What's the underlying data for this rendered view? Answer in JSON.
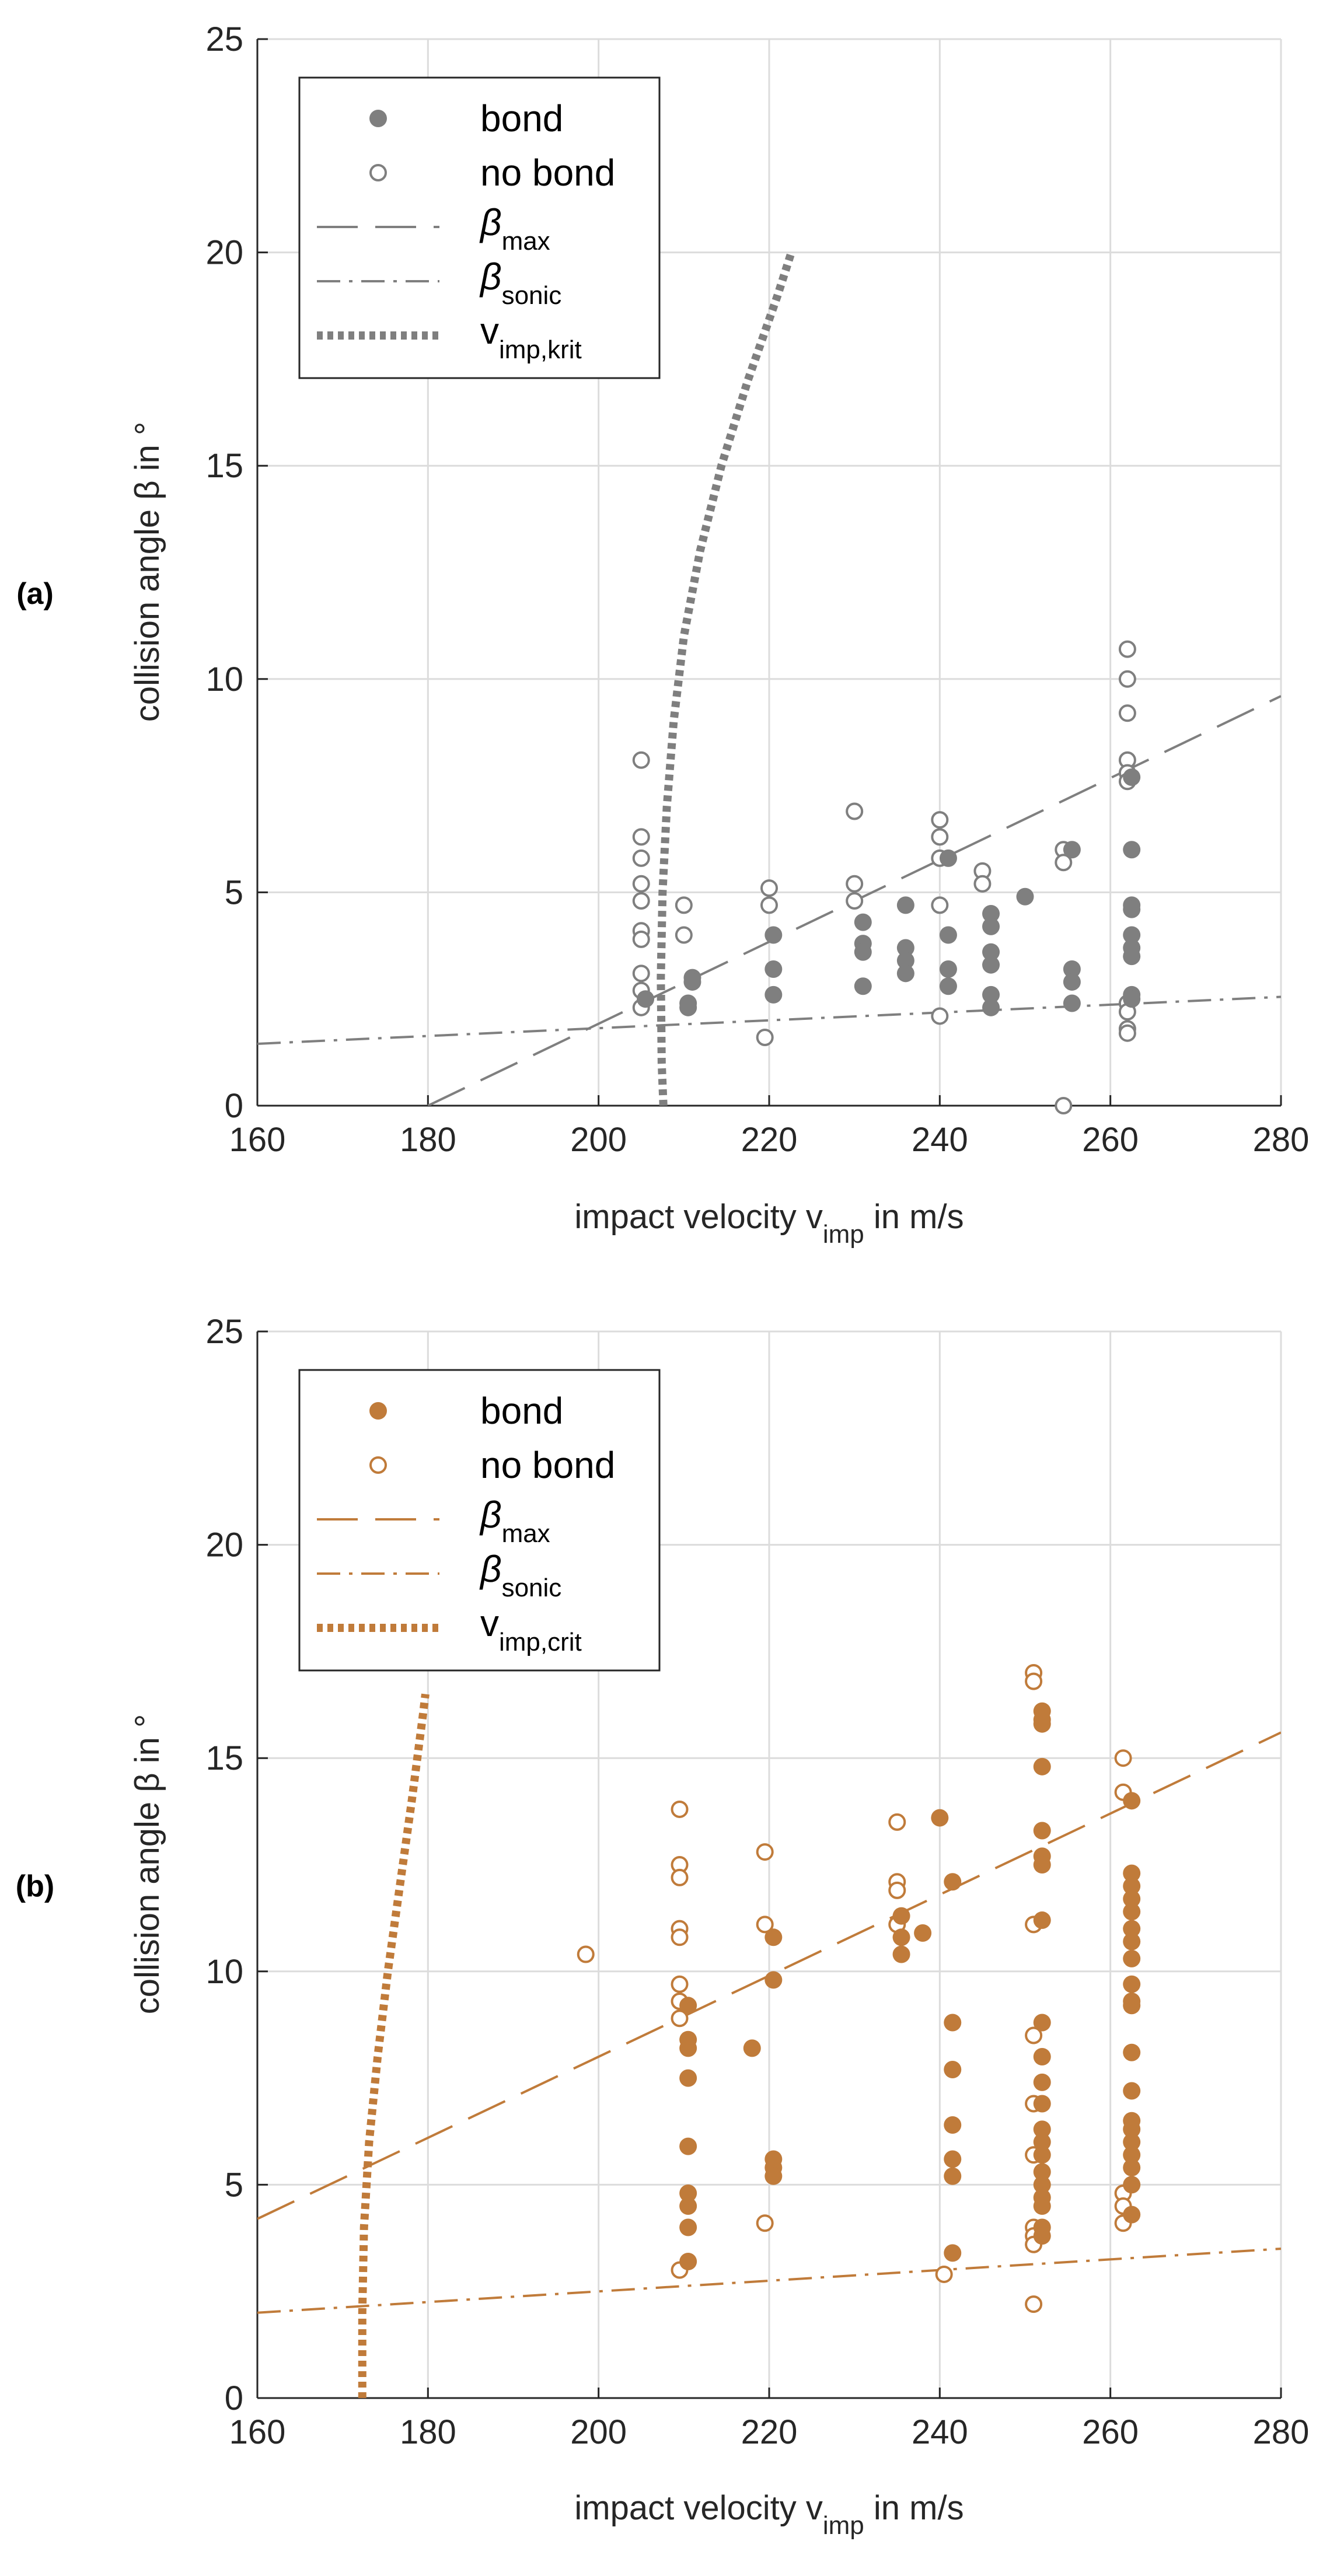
{
  "chart_data": [
    {
      "type": "scatter",
      "panel_label": "(a)",
      "color": "#7f7f7f",
      "xlabel": "impact velocity v",
      "xlabel_sub": "imp",
      "xlabel_tail": " in m/s",
      "ylabel": "collision angle β in °",
      "xlim": [
        160,
        280
      ],
      "ylim": [
        0,
        25
      ],
      "xticks": [
        160,
        180,
        200,
        220,
        240,
        260,
        280
      ],
      "yticks": [
        0,
        5,
        10,
        15,
        20,
        25
      ],
      "grid": true,
      "legend": {
        "placement": "top-left",
        "bond": "bond",
        "nobond": "no bond",
        "beta_max_sym": "β",
        "beta_max_sub": "max",
        "beta_sonic_sym": "β",
        "beta_sonic_sub": "sonic",
        "vcrit_sym": "v",
        "vcrit_sub": "imp,krit"
      },
      "bond": [
        [
          205.5,
          2.5
        ],
        [
          210.5,
          2.4
        ],
        [
          211,
          3.0
        ],
        [
          211,
          2.9
        ],
        [
          210.5,
          2.3
        ],
        [
          220.5,
          4.0
        ],
        [
          220.5,
          3.2
        ],
        [
          220.5,
          2.6
        ],
        [
          231,
          4.3
        ],
        [
          231,
          3.8
        ],
        [
          231,
          3.6
        ],
        [
          231,
          2.8
        ],
        [
          236,
          4.7
        ],
        [
          236,
          3.7
        ],
        [
          236,
          3.4
        ],
        [
          236,
          3.1
        ],
        [
          241,
          5.8
        ],
        [
          241,
          4.0
        ],
        [
          241,
          3.2
        ],
        [
          241,
          2.8
        ],
        [
          246,
          4.5
        ],
        [
          246,
          4.2
        ],
        [
          246,
          3.6
        ],
        [
          246,
          3.3
        ],
        [
          246,
          2.6
        ],
        [
          246,
          2.3
        ],
        [
          250,
          4.9
        ],
        [
          255.5,
          6.0
        ],
        [
          255.5,
          3.2
        ],
        [
          255.5,
          2.9
        ],
        [
          255.5,
          2.4
        ],
        [
          262.5,
          7.7
        ],
        [
          262.5,
          6.0
        ],
        [
          262.5,
          4.7
        ],
        [
          262.5,
          4.6
        ],
        [
          262.5,
          4.0
        ],
        [
          262.5,
          3.7
        ],
        [
          262.5,
          3.5
        ],
        [
          262.5,
          2.6
        ],
        [
          262.5,
          2.5
        ]
      ],
      "nobond": [
        [
          205,
          8.1
        ],
        [
          205,
          6.3
        ],
        [
          205,
          5.8
        ],
        [
          205,
          5.2
        ],
        [
          205,
          4.8
        ],
        [
          205,
          4.1
        ],
        [
          205,
          3.9
        ],
        [
          205,
          3.1
        ],
        [
          205,
          2.7
        ],
        [
          205,
          2.3
        ],
        [
          210,
          4.7
        ],
        [
          210,
          4.0
        ],
        [
          220,
          5.1
        ],
        [
          220,
          4.7
        ],
        [
          219.5,
          1.6
        ],
        [
          230,
          6.9
        ],
        [
          230,
          5.2
        ],
        [
          230,
          4.8
        ],
        [
          240,
          6.7
        ],
        [
          240,
          6.3
        ],
        [
          240,
          5.8
        ],
        [
          240,
          4.7
        ],
        [
          240,
          2.1
        ],
        [
          245,
          5.5
        ],
        [
          245,
          5.2
        ],
        [
          254.5,
          6.0
        ],
        [
          254.5,
          5.7
        ],
        [
          254.5,
          0.0
        ],
        [
          262,
          10.7
        ],
        [
          262,
          10.0
        ],
        [
          262,
          9.2
        ],
        [
          262,
          8.1
        ],
        [
          262,
          7.8
        ],
        [
          262,
          7.6
        ],
        [
          262,
          2.4
        ],
        [
          262,
          2.2
        ],
        [
          262,
          1.8
        ],
        [
          262,
          1.7
        ]
      ],
      "beta_max_line": [
        [
          180,
          0
        ],
        [
          280,
          9.6
        ]
      ],
      "beta_sonic_line": [
        [
          160,
          1.45
        ],
        [
          280,
          2.55
        ]
      ],
      "v_crit_curve": [
        [
          207.6,
          0
        ],
        [
          207.4,
          1
        ],
        [
          207.3,
          3
        ],
        [
          207.5,
          5
        ],
        [
          208,
          7
        ],
        [
          208.8,
          9
        ],
        [
          210,
          11
        ],
        [
          211.9,
          13
        ],
        [
          214.4,
          15
        ],
        [
          217.5,
          17
        ],
        [
          221,
          19
        ],
        [
          222.6,
          20
        ]
      ]
    },
    {
      "type": "scatter",
      "panel_label": "(b)",
      "color": "#c07b3a",
      "xlabel": "impact velocity v",
      "xlabel_sub": "imp",
      "xlabel_tail": " in m/s",
      "ylabel": "collision angle β in °",
      "xlim": [
        160,
        280
      ],
      "ylim": [
        0,
        25
      ],
      "xticks": [
        160,
        180,
        200,
        220,
        240,
        260,
        280
      ],
      "yticks": [
        0,
        5,
        10,
        15,
        20,
        25
      ],
      "grid": true,
      "legend": {
        "placement": "top-left",
        "bond": "bond",
        "nobond": "no bond",
        "beta_max_sym": "β",
        "beta_max_sub": "max",
        "beta_sonic_sym": "β",
        "beta_sonic_sub": "sonic",
        "vcrit_sym": "v",
        "vcrit_sub": "imp,crit"
      },
      "bond": [
        [
          210.5,
          9.2
        ],
        [
          210.5,
          8.4
        ],
        [
          210.5,
          8.2
        ],
        [
          210.5,
          7.5
        ],
        [
          210.5,
          5.9
        ],
        [
          210.5,
          4.8
        ],
        [
          210.5,
          4.5
        ],
        [
          210.5,
          4.0
        ],
        [
          210.5,
          3.2
        ],
        [
          218,
          8.2
        ],
        [
          220.5,
          10.8
        ],
        [
          220.5,
          9.8
        ],
        [
          220.5,
          5.6
        ],
        [
          220.5,
          5.4
        ],
        [
          220.5,
          5.2
        ],
        [
          235.5,
          11.3
        ],
        [
          235.5,
          10.8
        ],
        [
          235.5,
          10.4
        ],
        [
          238,
          10.9
        ],
        [
          240,
          13.6
        ],
        [
          241.5,
          12.1
        ],
        [
          241.5,
          8.8
        ],
        [
          241.5,
          7.7
        ],
        [
          241.5,
          6.4
        ],
        [
          241.5,
          5.6
        ],
        [
          241.5,
          5.2
        ],
        [
          241.5,
          3.4
        ],
        [
          252,
          16.1
        ],
        [
          252,
          15.9
        ],
        [
          252,
          15.8
        ],
        [
          252,
          14.8
        ],
        [
          252,
          13.3
        ],
        [
          252,
          12.7
        ],
        [
          252,
          12.5
        ],
        [
          252,
          11.2
        ],
        [
          252,
          8.8
        ],
        [
          252,
          8.0
        ],
        [
          252,
          7.4
        ],
        [
          252,
          6.9
        ],
        [
          252,
          6.3
        ],
        [
          252,
          6.0
        ],
        [
          252,
          5.7
        ],
        [
          252,
          5.3
        ],
        [
          252,
          5.0
        ],
        [
          252,
          4.7
        ],
        [
          252,
          4.5
        ],
        [
          252,
          4.0
        ],
        [
          252,
          3.8
        ],
        [
          262.5,
          14.0
        ],
        [
          262.5,
          12.3
        ],
        [
          262.5,
          12.0
        ],
        [
          262.5,
          11.7
        ],
        [
          262.5,
          11.4
        ],
        [
          262.5,
          11.0
        ],
        [
          262.5,
          10.7
        ],
        [
          262.5,
          10.3
        ],
        [
          262.5,
          9.7
        ],
        [
          262.5,
          9.3
        ],
        [
          262.5,
          9.2
        ],
        [
          262.5,
          8.1
        ],
        [
          262.5,
          7.2
        ],
        [
          262.5,
          6.5
        ],
        [
          262.5,
          6.3
        ],
        [
          262.5,
          6.0
        ],
        [
          262.5,
          5.7
        ],
        [
          262.5,
          5.4
        ],
        [
          262.5,
          5.0
        ],
        [
          262.5,
          4.3
        ]
      ],
      "nobond": [
        [
          198.5,
          10.4
        ],
        [
          209.5,
          13.8
        ],
        [
          209.5,
          12.5
        ],
        [
          209.5,
          12.2
        ],
        [
          209.5,
          11.0
        ],
        [
          209.5,
          10.8
        ],
        [
          209.5,
          9.7
        ],
        [
          209.5,
          9.3
        ],
        [
          209.5,
          8.9
        ],
        [
          209.5,
          3.0
        ],
        [
          219.5,
          12.8
        ],
        [
          219.5,
          11.1
        ],
        [
          219.5,
          4.1
        ],
        [
          235,
          13.5
        ],
        [
          235,
          12.1
        ],
        [
          235,
          11.9
        ],
        [
          235,
          11.1
        ],
        [
          240.5,
          2.9
        ],
        [
          251,
          17.0
        ],
        [
          251,
          16.8
        ],
        [
          251,
          11.1
        ],
        [
          251,
          8.5
        ],
        [
          251,
          6.9
        ],
        [
          251,
          5.7
        ],
        [
          251,
          4.0
        ],
        [
          251,
          3.8
        ],
        [
          251,
          3.6
        ],
        [
          251,
          2.2
        ],
        [
          261.5,
          15.0
        ],
        [
          261.5,
          14.2
        ],
        [
          261.5,
          4.8
        ],
        [
          261.5,
          4.5
        ],
        [
          261.5,
          4.1
        ]
      ],
      "beta_max_line": [
        [
          160,
          4.2
        ],
        [
          280,
          15.6
        ]
      ],
      "beta_sonic_line": [
        [
          160,
          2.0
        ],
        [
          280,
          3.5
        ]
      ],
      "v_crit_curve": [
        [
          172.3,
          0
        ],
        [
          172.3,
          2
        ],
        [
          172.5,
          4
        ],
        [
          173.1,
          6
        ],
        [
          174.1,
          8
        ],
        [
          175.3,
          10
        ],
        [
          176.7,
          12
        ],
        [
          178.1,
          14
        ],
        [
          179.4,
          16
        ],
        [
          179.7,
          16.5
        ]
      ]
    }
  ]
}
